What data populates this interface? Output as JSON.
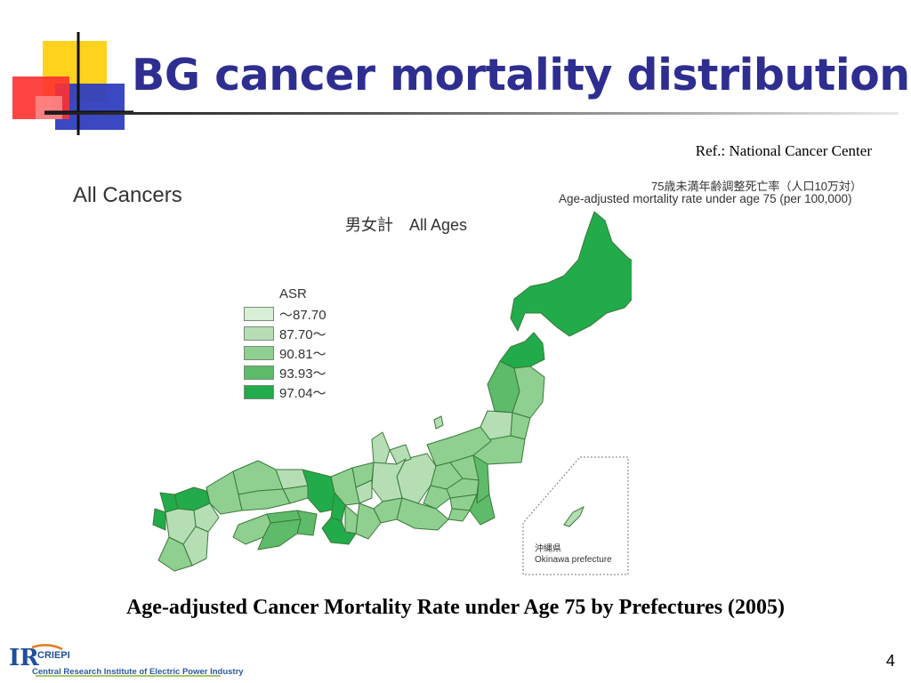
{
  "slide": {
    "title": "BG cancer mortality distribution",
    "reference": "Ref.: National Cancer Center",
    "caption": "Age-adjusted Cancer Mortality Rate under Age 75 by Prefectures (2005)",
    "page_number": "4"
  },
  "map": {
    "heading": "All Cancers",
    "subheading": "男女計　All Ages",
    "rate_label_jp": "75歳未満年齢調整死亡率（人口10万対）",
    "rate_label_en": "Age-adjusted mortality rate under age 75 (per 100,000)",
    "legend": {
      "title": "ASR",
      "items": [
        {
          "label": "～87.70",
          "color": "#d7eed7"
        },
        {
          "label": "87.70～",
          "color": "#b5deb5"
        },
        {
          "label": "90.81～",
          "color": "#8fcf8f"
        },
        {
          "label": "93.93～",
          "color": "#5dbb6a"
        },
        {
          "label": "97.04～",
          "color": "#22ab4a"
        }
      ]
    },
    "inset_label_jp": "沖縄県",
    "inset_label_en": "Okinawa prefecture"
  },
  "logo": {
    "mark": "IR",
    "org_short": "CRIEPI",
    "org_name": "Central Research Institute of Electric Power Industry"
  }
}
